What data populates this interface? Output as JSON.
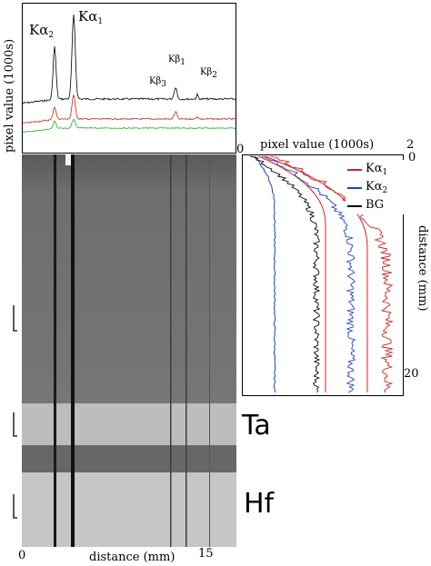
{
  "figure": {
    "top_plot": {
      "ylabel": "pixel value (1000s)",
      "peaks": [
        {
          "label": "Kα",
          "sub": "2"
        },
        {
          "label": "Kα",
          "sub": "1"
        },
        {
          "label": "Kβ",
          "sub": "3"
        },
        {
          "label": "Kβ",
          "sub": "1"
        },
        {
          "label": "Kβ",
          "sub": "2"
        }
      ]
    },
    "image": {
      "xlabel": "distance (mm)",
      "x_ticks": [
        "0",
        "15"
      ],
      "element_labels": [
        "Ta",
        "Hf"
      ]
    },
    "side_plot": {
      "xlabel": "pixel value (1000s)",
      "x_ticks": [
        "0",
        "2"
      ],
      "ylabel": "distance (mm)",
      "y_ticks": [
        "0",
        "20"
      ],
      "legend": [
        {
          "label": "Kα",
          "sub": "1",
          "color": "#d62020"
        },
        {
          "label": "Kα",
          "sub": "2",
          "color": "#1f3fd0"
        },
        {
          "label": "BG",
          "sub": "",
          "color": "#000000"
        }
      ]
    }
  }
}
